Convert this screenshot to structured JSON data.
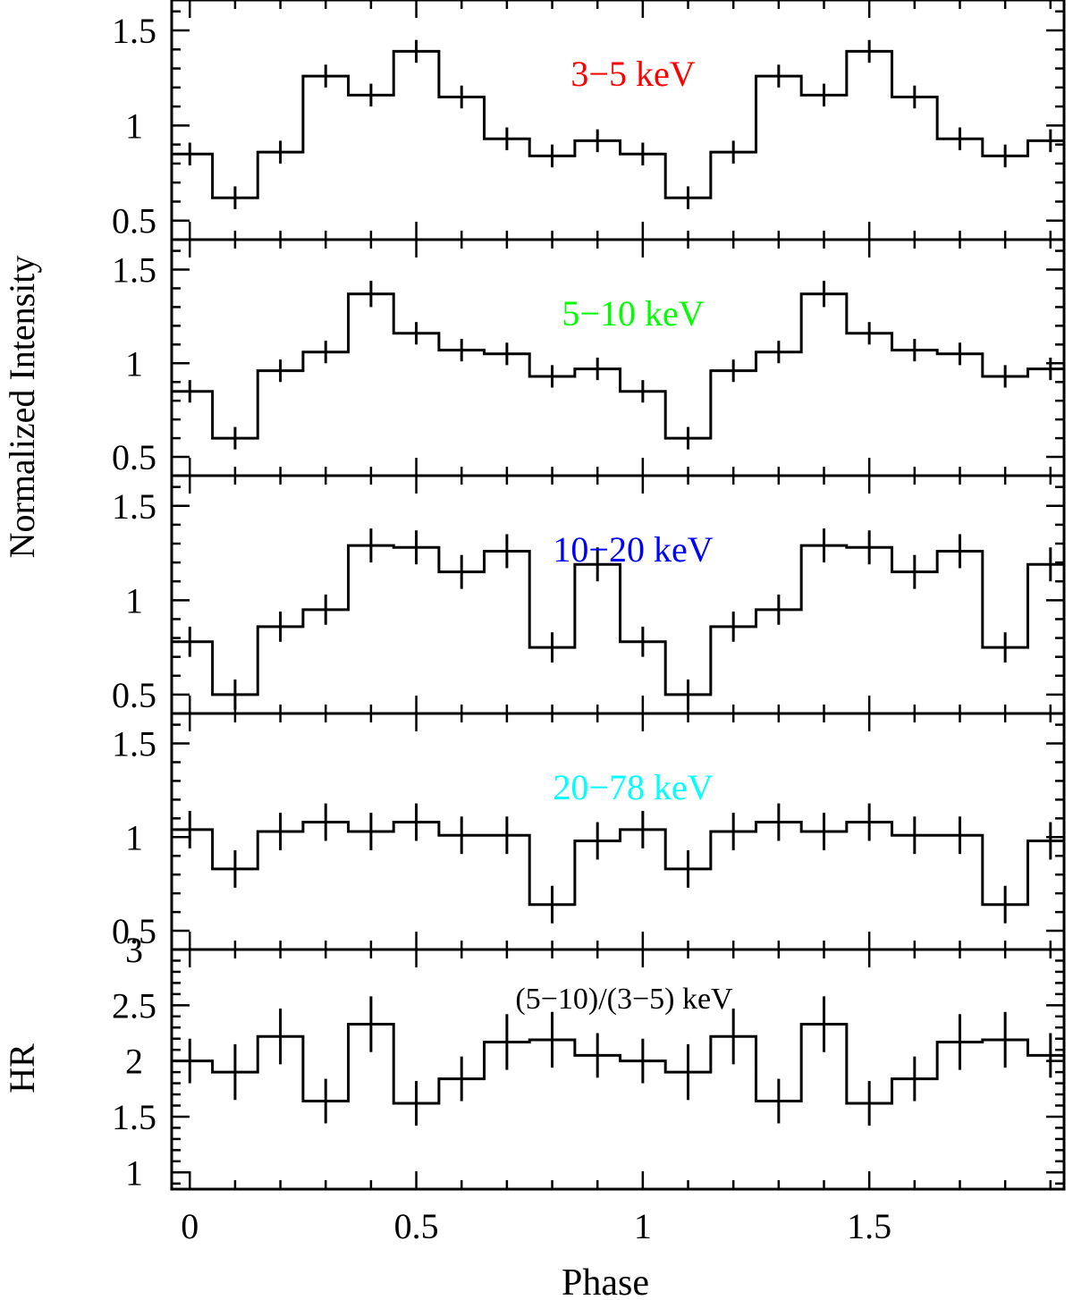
{
  "chart_data": {
    "type": "line",
    "xlabel": "Phase",
    "ylabel": "Normalized Intensity",
    "x_ticks": [
      "0",
      "0.5",
      "1",
      "1.5"
    ],
    "xlim": [
      -0.04,
      1.93
    ],
    "bin_width": 0.1,
    "x": [
      0,
      0.1,
      0.2,
      0.3,
      0.4,
      0.5,
      0.6,
      0.7,
      0.8,
      0.9,
      1.0,
      1.1,
      1.2,
      1.3,
      1.4,
      1.5,
      1.6,
      1.7,
      1.8,
      1.9
    ],
    "panels": [
      {
        "label": "3−5 keV",
        "label_color": "#ff0000",
        "ylim": [
          0.4,
          1.66
        ],
        "y_ticks": [
          "0.5",
          "1",
          "1.5"
        ],
        "values": [
          0.85,
          0.62,
          0.86,
          1.26,
          1.16,
          1.39,
          1.15,
          0.93,
          0.84,
          0.92,
          0.85,
          0.62,
          0.86,
          1.26,
          1.16,
          1.39,
          1.15,
          0.93,
          0.84,
          0.92
        ],
        "errors": [
          0.06,
          0.06,
          0.06,
          0.06,
          0.06,
          0.06,
          0.06,
          0.06,
          0.06,
          0.06,
          0.06,
          0.06,
          0.06,
          0.06,
          0.06,
          0.06,
          0.06,
          0.06,
          0.06,
          0.06
        ]
      },
      {
        "label": "5−10 keV",
        "label_color": "#00ff00",
        "ylim": [
          0.4,
          1.66
        ],
        "y_ticks": [
          "0.5",
          "1",
          "1.5"
        ],
        "values": [
          0.85,
          0.6,
          0.96,
          1.06,
          1.37,
          1.16,
          1.07,
          1.05,
          0.93,
          0.97,
          0.85,
          0.6,
          0.96,
          1.06,
          1.37,
          1.16,
          1.07,
          1.05,
          0.93,
          0.97
        ],
        "errors": [
          0.06,
          0.06,
          0.06,
          0.06,
          0.07,
          0.06,
          0.06,
          0.06,
          0.06,
          0.06,
          0.06,
          0.06,
          0.06,
          0.06,
          0.07,
          0.06,
          0.06,
          0.06,
          0.06,
          0.06
        ]
      },
      {
        "label": "10−20 keV",
        "label_color": "#0000ff",
        "ylim": [
          0.4,
          1.66
        ],
        "y_ticks": [
          "0.5",
          "1",
          "1.5"
        ],
        "values": [
          0.78,
          0.5,
          0.86,
          0.95,
          1.29,
          1.28,
          1.15,
          1.26,
          0.75,
          1.19,
          0.78,
          0.5,
          0.86,
          0.95,
          1.29,
          1.28,
          1.15,
          1.26,
          0.75,
          1.19
        ],
        "errors": [
          0.08,
          0.08,
          0.08,
          0.08,
          0.09,
          0.09,
          0.09,
          0.09,
          0.08,
          0.09,
          0.08,
          0.08,
          0.08,
          0.08,
          0.09,
          0.09,
          0.09,
          0.09,
          0.08,
          0.09
        ]
      },
      {
        "label": "20−78 keV",
        "label_color": "#00ffff",
        "ylim": [
          0.4,
          1.66
        ],
        "y_ticks": [
          "0.5",
          "1",
          "1.5"
        ],
        "values": [
          1.04,
          0.83,
          1.03,
          1.08,
          1.03,
          1.08,
          1.01,
          1.01,
          0.64,
          0.98,
          1.04,
          0.83,
          1.03,
          1.08,
          1.03,
          1.08,
          1.01,
          1.01,
          0.64,
          0.98
        ],
        "errors": [
          0.1,
          0.1,
          0.1,
          0.1,
          0.1,
          0.1,
          0.1,
          0.1,
          0.1,
          0.1,
          0.1,
          0.1,
          0.1,
          0.1,
          0.1,
          0.1,
          0.1,
          0.1,
          0.1,
          0.1
        ]
      }
    ],
    "hr_panel": {
      "label": "(5−10)/(3−5) keV",
      "label_color": "#000000",
      "ylabel": "HR",
      "ylim": [
        0.85,
        3.0
      ],
      "y_ticks": [
        "1",
        "1.5",
        "2",
        "2.5",
        "3"
      ],
      "values": [
        2.0,
        1.9,
        2.22,
        1.64,
        2.33,
        1.62,
        1.84,
        2.17,
        2.19,
        2.05,
        2.0,
        1.9,
        2.22,
        1.64,
        2.33,
        1.62,
        1.84,
        2.17,
        2.19,
        2.05
      ],
      "errors": [
        0.2,
        0.25,
        0.25,
        0.2,
        0.25,
        0.2,
        0.2,
        0.25,
        0.25,
        0.2,
        0.2,
        0.25,
        0.25,
        0.2,
        0.25,
        0.2,
        0.2,
        0.25,
        0.25,
        0.2
      ]
    }
  }
}
